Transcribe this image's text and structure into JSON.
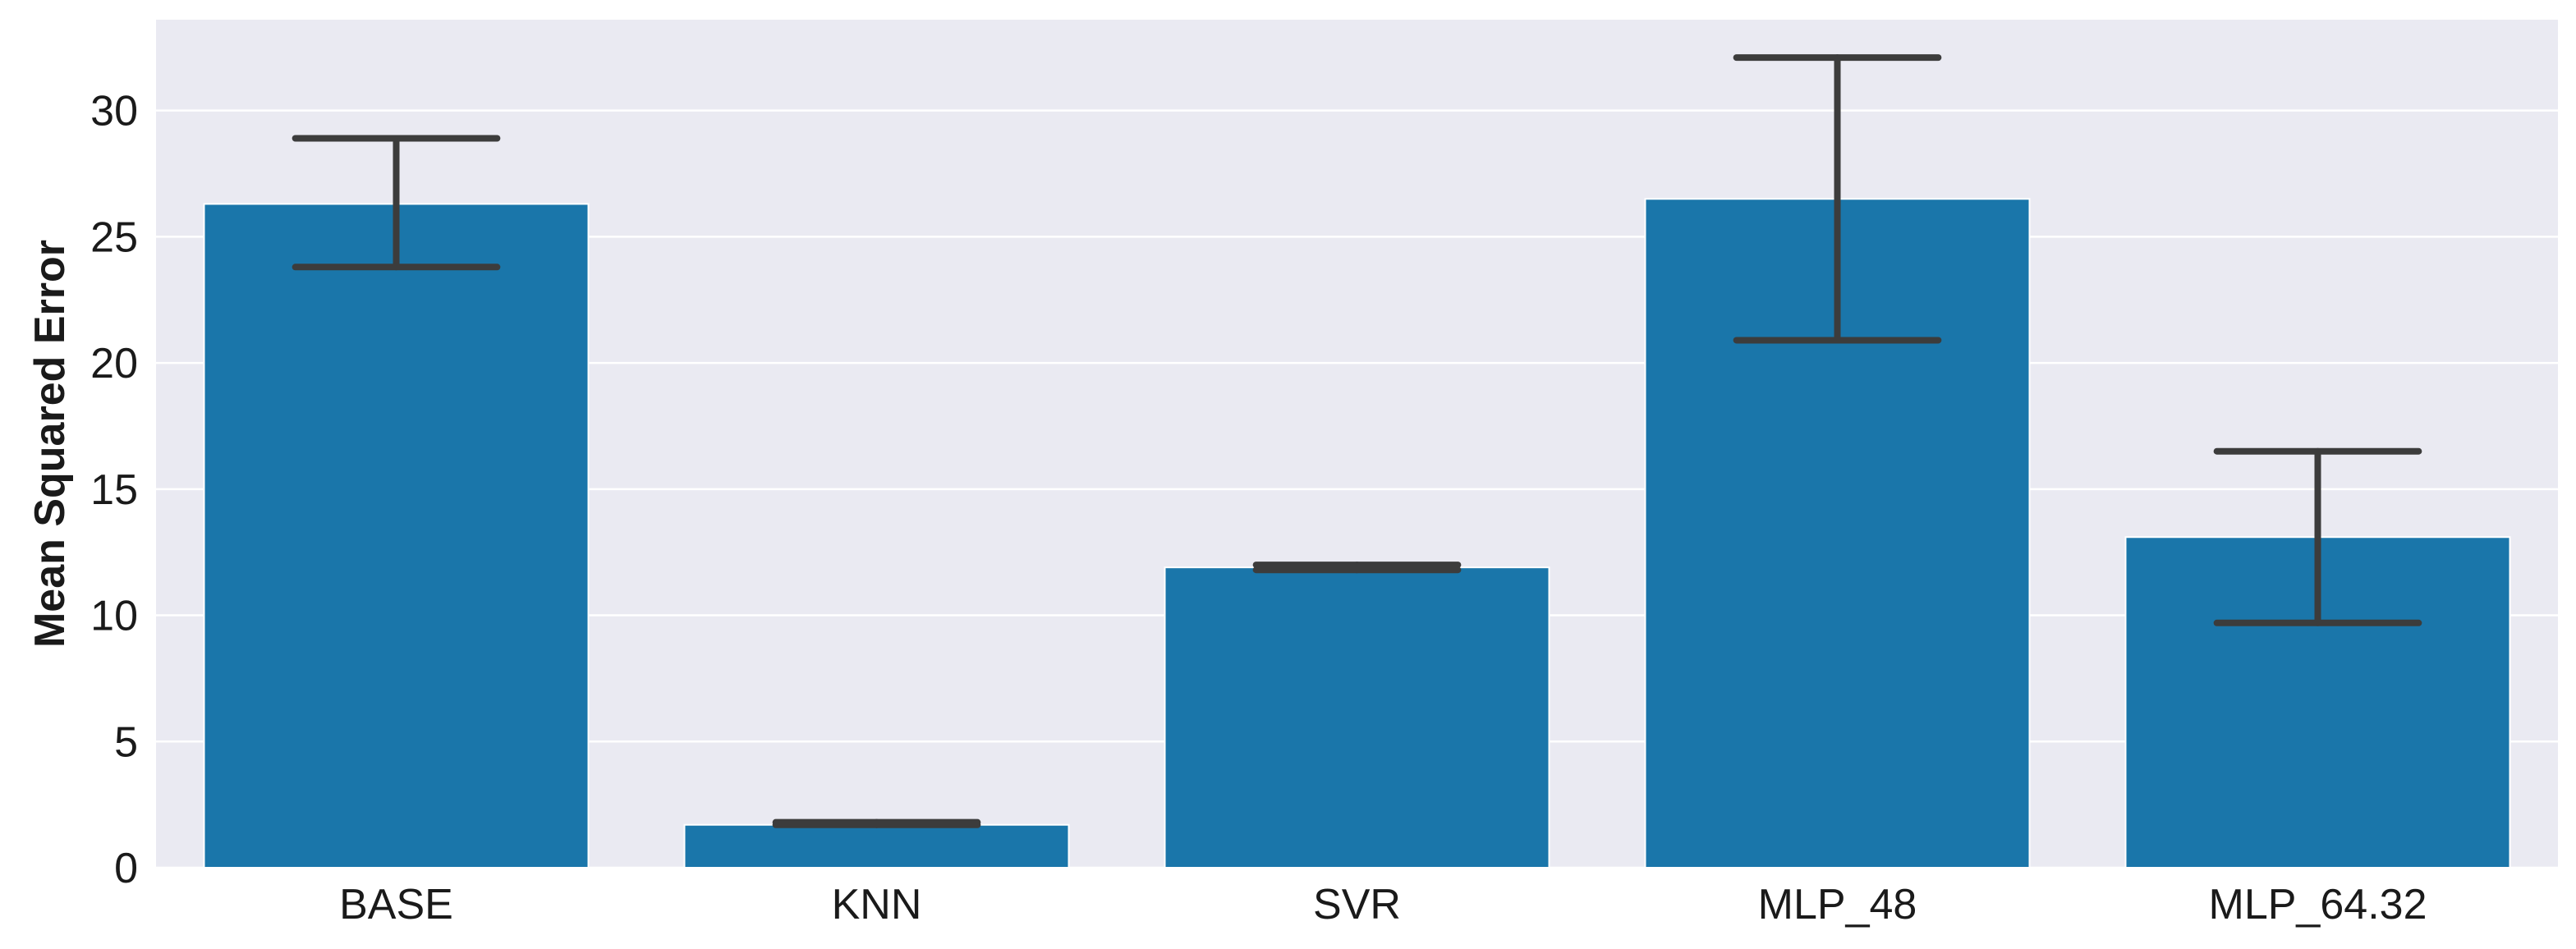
{
  "colors": {
    "background": "#eaeaf2",
    "bar": "#1a76aa",
    "error_bar": "#3c3c3c",
    "grid": "#ffffff"
  },
  "chart_data": {
    "type": "bar",
    "title": "",
    "xlabel": "",
    "ylabel": "Mean Squared Error",
    "categories": [
      "BASE",
      "KNN",
      "SVR",
      "MLP_48",
      "MLP_64.32"
    ],
    "values": [
      26.3,
      1.7,
      11.9,
      26.5,
      13.1
    ],
    "error_low": [
      23.8,
      1.7,
      11.8,
      20.9,
      9.7
    ],
    "error_high": [
      28.9,
      1.8,
      12.0,
      32.1,
      16.5
    ],
    "ylim": [
      0,
      33.6
    ],
    "yticks": [
      0,
      5,
      10,
      15,
      20,
      25,
      30
    ],
    "grid": true,
    "legend": "none"
  }
}
